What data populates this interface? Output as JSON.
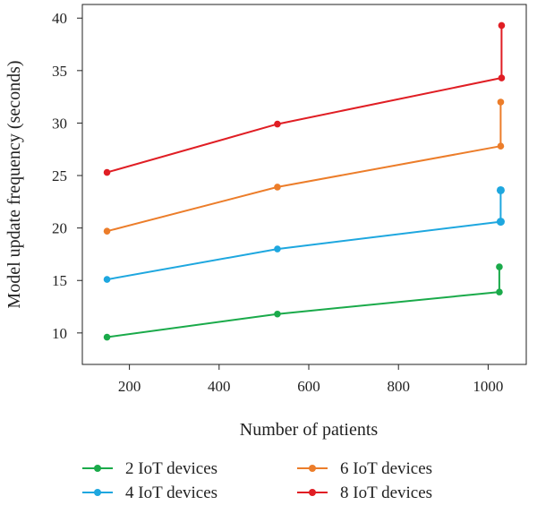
{
  "chart_data": {
    "type": "line",
    "xlabel": "Number of patients",
    "ylabel": "Model update frequency (seconds)",
    "xlim": [
      95,
      1085
    ],
    "ylim": [
      7.0,
      41.3
    ],
    "xticks": [
      200,
      400,
      600,
      800,
      1000
    ],
    "yticks": [
      10,
      15,
      20,
      25,
      30,
      35,
      40
    ],
    "grid": false,
    "legend_position": "bottom",
    "series": [
      {
        "name": "2 IoT devices",
        "color": "#1aaa4a",
        "x": [
          150,
          530,
          1025,
          1025
        ],
        "y": [
          9.6,
          11.8,
          13.9,
          16.3
        ]
      },
      {
        "name": "4 IoT devices",
        "color": "#1ea7df",
        "x": [
          150,
          530,
          1028,
          1028
        ],
        "y": [
          15.1,
          18.0,
          20.6,
          23.6
        ]
      },
      {
        "name": "6 IoT devices",
        "color": "#ec7d2a",
        "x": [
          150,
          530,
          1028,
          1028
        ],
        "y": [
          19.7,
          23.9,
          27.8,
          32.0
        ]
      },
      {
        "name": "8 IoT devices",
        "color": "#e01e24",
        "x": [
          150,
          530,
          1030,
          1030
        ],
        "y": [
          25.3,
          29.9,
          34.3,
          39.3
        ]
      }
    ]
  }
}
